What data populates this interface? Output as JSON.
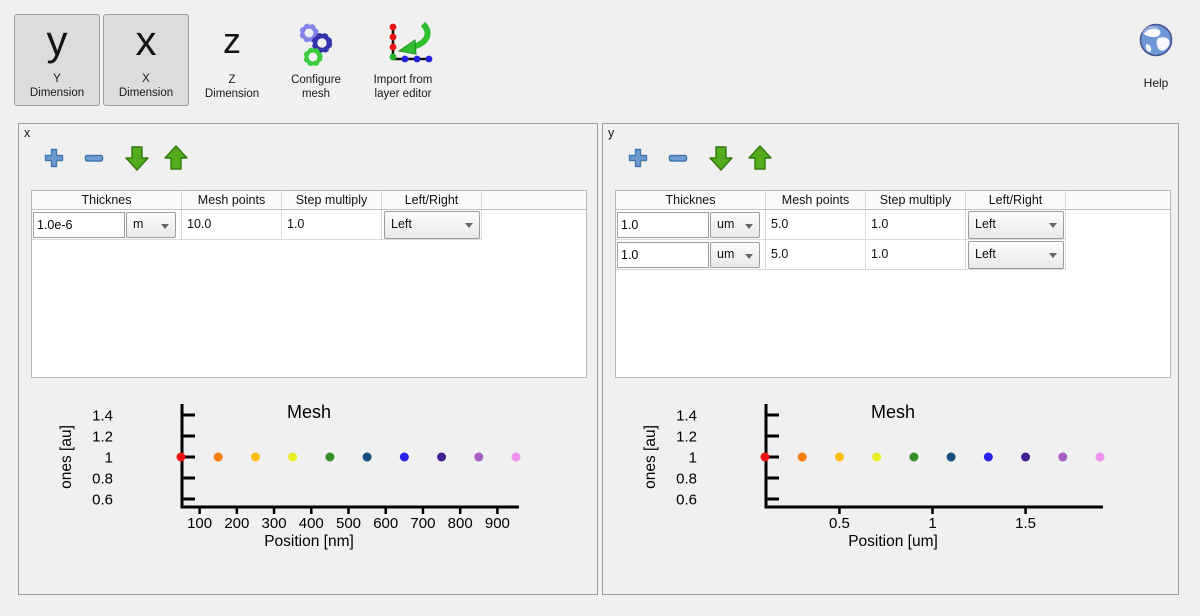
{
  "toolbar": {
    "y_dimension": {
      "glyph": "y",
      "line1": "Y",
      "line2": "Dimension"
    },
    "x_dimension": {
      "glyph": "x",
      "line1": "X",
      "line2": "Dimension"
    },
    "z_dimension": {
      "glyph": "z",
      "line1": "Z",
      "line2": "Dimension"
    },
    "configure_mesh": {
      "line1": "Configure",
      "line2": "mesh"
    },
    "import_layer": {
      "line1": "Import from",
      "line2": "layer editor"
    },
    "help": {
      "label": "Help"
    }
  },
  "panels": [
    {
      "title": "x",
      "table": {
        "headers": [
          "Thicknes",
          "Mesh points",
          "Step multiply",
          "Left/Right"
        ],
        "rows": [
          {
            "thickness": "1.0e-6",
            "unit": "m",
            "mesh_points": "10.0",
            "step_multiply": "1.0",
            "left_right": "Left"
          }
        ]
      }
    },
    {
      "title": "y",
      "table": {
        "headers": [
          "Thicknes",
          "Mesh points",
          "Step multiply",
          "Left/Right"
        ],
        "rows": [
          {
            "thickness": "1.0",
            "unit": "um",
            "mesh_points": "5.0",
            "step_multiply": "1.0",
            "left_right": "Left"
          },
          {
            "thickness": "1.0",
            "unit": "um",
            "mesh_points": "5.0",
            "step_multiply": "1.0",
            "left_right": "Left"
          }
        ]
      }
    }
  ],
  "chart_data": [
    {
      "type": "scatter",
      "title": "Mesh",
      "xlabel": "Position [nm]",
      "ylabel": "ones [au]",
      "x": [
        50,
        150,
        250,
        350,
        450,
        550,
        650,
        750,
        850,
        950
      ],
      "y": [
        1,
        1,
        1,
        1,
        1,
        1,
        1,
        1,
        1,
        1
      ],
      "point_colors": [
        "#ee1111",
        "#f97c0e",
        "#fbbd16",
        "#e6ee22",
        "#319122",
        "#174f82",
        "#2823e8",
        "#41208d",
        "#a55fc2",
        "#ee93ee"
      ],
      "xticks": {
        "values": [
          100,
          200,
          300,
          400,
          500,
          600,
          700,
          800,
          900
        ],
        "labels": [
          "100",
          "200",
          "300",
          "400",
          "500",
          "600",
          "700",
          "800",
          "900"
        ]
      },
      "yticks": {
        "values": [
          1.4,
          1.2,
          1.0,
          0.8,
          0.6
        ],
        "labels": [
          "1.4",
          "1.2",
          "1",
          "0.8",
          "0.6"
        ]
      },
      "ylim": [
        0.5,
        1.5
      ],
      "legend": false,
      "grid": false
    },
    {
      "type": "scatter",
      "title": "Mesh",
      "xlabel": "Position [um]",
      "ylabel": "ones [au]",
      "x": [
        0.1,
        0.3,
        0.5,
        0.7,
        0.9,
        1.1,
        1.3,
        1.5,
        1.7,
        1.9
      ],
      "y": [
        1,
        1,
        1,
        1,
        1,
        1,
        1,
        1,
        1,
        1
      ],
      "point_colors": [
        "#ee1111",
        "#f97c0e",
        "#fbbd16",
        "#e6ee22",
        "#319122",
        "#174f82",
        "#2823e8",
        "#41208d",
        "#a55fc2",
        "#ee93ee"
      ],
      "xticks": {
        "values": [
          0.5,
          1.0,
          1.5
        ],
        "labels": [
          "0.5",
          "1",
          "1.5"
        ]
      },
      "yticks": {
        "values": [
          1.4,
          1.2,
          1.0,
          0.8,
          0.6
        ],
        "labels": [
          "1.4",
          "1.2",
          "1",
          "0.8",
          "0.6"
        ]
      },
      "ylim": [
        0.5,
        1.5
      ],
      "legend": false,
      "grid": false
    }
  ]
}
